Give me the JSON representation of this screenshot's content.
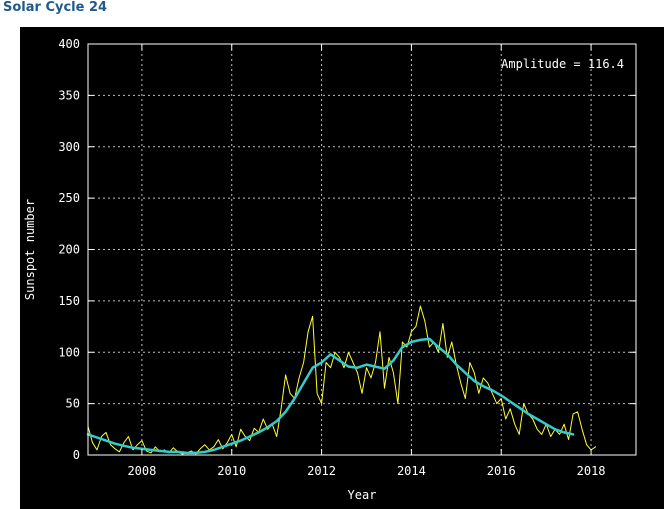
{
  "page": {
    "title": "Solar Cycle 24"
  },
  "colors": {
    "background": "#000000",
    "axis": "#ffffff",
    "grid": "#bfbfbf",
    "monthly": "#ffff33",
    "smoothed": "#33cccc",
    "title": "#1f5a8a"
  },
  "chart_data": {
    "type": "line",
    "title": "",
    "xlabel": "Year",
    "ylabel": "Sunspot number",
    "xlim": [
      2006.8,
      2019.0
    ],
    "ylim": [
      0,
      400
    ],
    "x_ticks": [
      2008,
      2010,
      2012,
      2014,
      2016,
      2018
    ],
    "y_ticks": [
      0,
      50,
      100,
      150,
      200,
      250,
      300,
      350,
      400
    ],
    "x_tick_labels": [
      "2008",
      "2010",
      "2012",
      "2014",
      "2016",
      "2018"
    ],
    "y_tick_labels": [
      "0",
      "50",
      "100",
      "150",
      "200",
      "250",
      "300",
      "350",
      "400"
    ],
    "grid": true,
    "annotation": "Amplitude = 116.4",
    "series": [
      {
        "color": "#ffff33",
        "x": [
          2006.8,
          2006.9,
          2007.0,
          2007.1,
          2007.2,
          2007.3,
          2007.4,
          2007.5,
          2007.6,
          2007.7,
          2007.8,
          2007.9,
          2008.0,
          2008.1,
          2008.2,
          2008.3,
          2008.4,
          2008.5,
          2008.6,
          2008.7,
          2008.8,
          2008.9,
          2009.0,
          2009.1,
          2009.2,
          2009.3,
          2009.4,
          2009.5,
          2009.6,
          2009.7,
          2009.8,
          2009.9,
          2010.0,
          2010.1,
          2010.2,
          2010.3,
          2010.4,
          2010.5,
          2010.6,
          2010.7,
          2010.8,
          2010.9,
          2011.0,
          2011.1,
          2011.2,
          2011.3,
          2011.4,
          2011.5,
          2011.6,
          2011.7,
          2011.8,
          2011.9,
          2012.0,
          2012.1,
          2012.2,
          2012.3,
          2012.4,
          2012.5,
          2012.6,
          2012.7,
          2012.8,
          2012.9,
          2013.0,
          2013.1,
          2013.2,
          2013.3,
          2013.4,
          2013.5,
          2013.6,
          2013.7,
          2013.8,
          2013.9,
          2014.0,
          2014.1,
          2014.2,
          2014.3,
          2014.4,
          2014.5,
          2014.6,
          2014.7,
          2014.8,
          2014.9,
          2015.0,
          2015.1,
          2015.2,
          2015.3,
          2015.4,
          2015.5,
          2015.6,
          2015.7,
          2015.8,
          2015.9,
          2016.0,
          2016.1,
          2016.2,
          2016.3,
          2016.4,
          2016.5,
          2016.6,
          2016.7,
          2016.8,
          2016.9,
          2017.0,
          2017.1,
          2017.2,
          2017.3,
          2017.4,
          2017.5,
          2017.6,
          2017.7,
          2017.8,
          2017.9,
          2018.0,
          2018.1
        ],
        "y": [
          28,
          12,
          5,
          18,
          22,
          10,
          6,
          3,
          12,
          18,
          5,
          10,
          14,
          4,
          2,
          8,
          3,
          5,
          2,
          7,
          3,
          1,
          2,
          4,
          1,
          6,
          10,
          5,
          8,
          15,
          6,
          12,
          20,
          8,
          25,
          18,
          14,
          26,
          22,
          35,
          25,
          30,
          18,
          45,
          78,
          60,
          55,
          75,
          90,
          120,
          135,
          60,
          50,
          90,
          85,
          100,
          95,
          85,
          100,
          90,
          80,
          60,
          85,
          75,
          90,
          120,
          65,
          95,
          80,
          50,
          110,
          105,
          120,
          125,
          145,
          130,
          105,
          110,
          100,
          128,
          95,
          110,
          88,
          70,
          55,
          90,
          80,
          60,
          75,
          70,
          60,
          50,
          55,
          35,
          45,
          30,
          20,
          50,
          40,
          35,
          25,
          20,
          30,
          18,
          25,
          20,
          30,
          15,
          40,
          42,
          25,
          10,
          5,
          8
        ],
        "name": ""
      },
      {
        "color": "#33cccc",
        "x": [
          2006.8,
          2007.0,
          2007.2,
          2007.4,
          2007.6,
          2007.8,
          2008.0,
          2008.2,
          2008.4,
          2008.6,
          2008.8,
          2009.0,
          2009.2,
          2009.4,
          2009.6,
          2009.8,
          2010.0,
          2010.2,
          2010.4,
          2010.6,
          2010.8,
          2011.0,
          2011.2,
          2011.4,
          2011.6,
          2011.8,
          2012.0,
          2012.2,
          2012.4,
          2012.6,
          2012.8,
          2013.0,
          2013.2,
          2013.4,
          2013.6,
          2013.8,
          2014.0,
          2014.2,
          2014.4,
          2014.6,
          2014.8,
          2015.0,
          2015.2,
          2015.4,
          2015.6,
          2015.8,
          2016.0,
          2016.2,
          2016.4,
          2016.6,
          2016.8,
          2017.0,
          2017.2,
          2017.4,
          2017.6
        ],
        "y": [
          20,
          17,
          14,
          11,
          9,
          7,
          6,
          5,
          4,
          3,
          3,
          2,
          2,
          3,
          5,
          8,
          11,
          14,
          18,
          22,
          27,
          33,
          42,
          55,
          70,
          85,
          90,
          98,
          92,
          86,
          85,
          88,
          86,
          84,
          92,
          105,
          110,
          112,
          113,
          105,
          98,
          88,
          80,
          72,
          67,
          63,
          58,
          52,
          46,
          40,
          35,
          30,
          25,
          22,
          20
        ],
        "name": ""
      }
    ]
  }
}
